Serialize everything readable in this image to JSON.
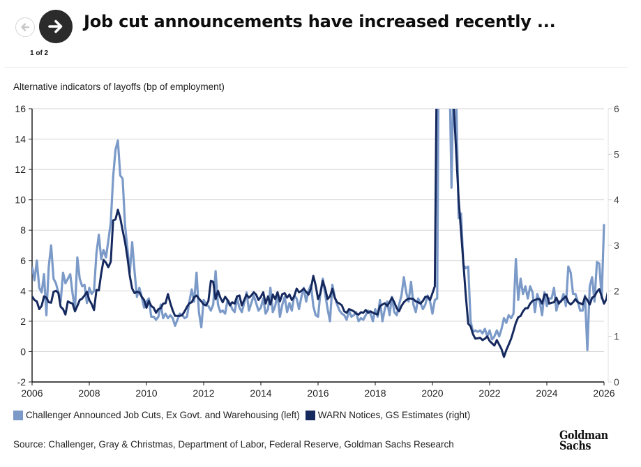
{
  "header": {
    "title": "Job cut announcements have increased recently ...",
    "page_indicator": "1 of 2",
    "prev_icon": "arrow-left-icon",
    "next_icon": "arrow-right-icon"
  },
  "legend": [
    {
      "label": "Challenger Announced Job Cuts, Ex Govt. and Warehousing (left)",
      "color": "#7b9ac8"
    },
    {
      "label": "WARN Notices, GS Estimates (right)",
      "color": "#15295e"
    }
  ],
  "source": "Source: Challenger, Gray & Christmas, Department of Labor, Federal Reserve, Goldman Sachs Research",
  "logo": {
    "line1": "Goldman",
    "line2": "Sachs"
  },
  "chart_data": {
    "type": "line",
    "title": "Alternative indicators of layoffs (bp of employment)",
    "xlabel": "",
    "ylabel_left": "",
    "ylabel_right": "",
    "x_start": "2006-01",
    "x_frequency": "monthly",
    "xlim": [
      2006,
      2026
    ],
    "x_ticks": [
      "2006",
      "2008",
      "2010",
      "2012",
      "2014",
      "2016",
      "2018",
      "2020",
      "2022",
      "2024",
      "2026"
    ],
    "ylim_left": [
      -2,
      16
    ],
    "y_ticks_left": [
      "-2",
      "0",
      "2",
      "4",
      "6",
      "8",
      "10",
      "12",
      "14",
      "16"
    ],
    "ylim_right": [
      0,
      6
    ],
    "y_ticks_right": [
      "0",
      "1",
      "2",
      "3",
      "4",
      "5",
      "6"
    ],
    "grid": true,
    "legend_position": "bottom-left",
    "series": [
      {
        "name": "Challenger Announced Job Cuts, Ex Govt. and Warehousing (left)",
        "axis": "left",
        "color": "#7b9ac8",
        "values": [
          5.6,
          4.7,
          6.0,
          4.2,
          3.9,
          5.1,
          2.4,
          5.6,
          7.0,
          4.8,
          4.5,
          3.9,
          3.3,
          5.2,
          4.5,
          4.8,
          5.1,
          3.8,
          2.8,
          6.2,
          4.8,
          4.3,
          4.4,
          3.2,
          4.2,
          3.8,
          4.0,
          6.5,
          7.7,
          6.1,
          6.7,
          6.2,
          7.3,
          8.5,
          11.5,
          13.3,
          13.9,
          11.6,
          11.4,
          8.3,
          6.8,
          5.2,
          7.2,
          5.3,
          3.6,
          4.2,
          3.6,
          2.9,
          3.3,
          3.5,
          2.3,
          2.3,
          2.1,
          2.3,
          3.1,
          2.2,
          2.5,
          2.2,
          2.4,
          2.2,
          1.7,
          2.1,
          2.5,
          2.4,
          2.2,
          2.3,
          3.3,
          4.1,
          3.3,
          5.2,
          2.6,
          1.6,
          3.4,
          3.1,
          3.0,
          2.7,
          3.1,
          5.3,
          3.1,
          2.6,
          2.7,
          2.5,
          3.4,
          3.2,
          2.8,
          2.6,
          3.5,
          2.9,
          2.6,
          3.2,
          3.9,
          2.7,
          3.2,
          3.7,
          3.2,
          2.7,
          2.9,
          3.5,
          2.5,
          2.8,
          4.2,
          2.6,
          3.0,
          3.8,
          2.3,
          3.1,
          3.6,
          2.6,
          3.2,
          2.7,
          3.7,
          3.5,
          2.8,
          3.6,
          4.2,
          3.3,
          4.0,
          4.4,
          3.0,
          2.4,
          2.3,
          3.9,
          4.8,
          3.8,
          2.8,
          2.0,
          4.4,
          3.6,
          3.1,
          2.7,
          2.5,
          2.4,
          2.1,
          2.7,
          2.3,
          2.4,
          2.6,
          2.0,
          2.2,
          2.1,
          2.4,
          2.7,
          2.5,
          2.0,
          2.8,
          2.3,
          3.4,
          2.0,
          2.8,
          3.3,
          2.4,
          3.6,
          2.6,
          2.4,
          3.1,
          3.7,
          4.9,
          3.9,
          3.3,
          4.6,
          3.1,
          2.6,
          3.5,
          3.2,
          2.8,
          3.1,
          3.7,
          3.3,
          2.5,
          3.4,
          3.5,
          30.0,
          40.0,
          30.0,
          25.0,
          20.0,
          10.8,
          20.0,
          16.5,
          8.8,
          9.1,
          5.7,
          5.5,
          5.6,
          2.0,
          1.3,
          1.4,
          1.3,
          1.4,
          1.2,
          1.5,
          1.0,
          1.4,
          0.8,
          1.0,
          1.4,
          1.0,
          1.5,
          2.2,
          1.9,
          2.4,
          2.2,
          2.5,
          6.1,
          3.4,
          4.8,
          3.8,
          4.3,
          3.5,
          4.3,
          3.9,
          2.6,
          3.8,
          3.3,
          2.4,
          3.9,
          3.0,
          3.5,
          3.5,
          4.2,
          2.7,
          3.3,
          3.3,
          3.8,
          3.0,
          5.6,
          5.2,
          3.8,
          3.8,
          3.3,
          2.7,
          2.7,
          3.7,
          0.1,
          4.3,
          4.9,
          3.3,
          5.9,
          5.8,
          3.5,
          8.4
        ]
      },
      {
        "name": "WARN Notices, GS Estimates (right)",
        "axis": "right",
        "color": "#15295e",
        "values": [
          1.88,
          1.8,
          1.77,
          1.6,
          1.67,
          1.88,
          1.85,
          1.75,
          1.74,
          1.98,
          2.0,
          1.96,
          1.65,
          1.6,
          1.48,
          1.77,
          1.74,
          1.72,
          1.55,
          1.67,
          1.8,
          1.83,
          1.9,
          1.98,
          1.8,
          1.71,
          1.58,
          2.02,
          2.01,
          2.38,
          2.68,
          2.62,
          2.52,
          2.64,
          3.55,
          3.57,
          3.78,
          3.6,
          3.33,
          3.07,
          2.73,
          2.33,
          2.05,
          1.95,
          1.98,
          1.97,
          1.87,
          1.8,
          1.63,
          1.78,
          1.67,
          1.63,
          1.52,
          1.6,
          1.62,
          1.72,
          1.73,
          1.93,
          1.73,
          1.57,
          1.45,
          1.45,
          1.45,
          1.47,
          1.55,
          1.65,
          1.73,
          1.75,
          1.86,
          1.9,
          1.83,
          1.77,
          1.7,
          1.68,
          1.78,
          2.22,
          2.2,
          1.82,
          2.0,
          1.85,
          1.75,
          1.87,
          1.8,
          1.68,
          1.75,
          1.72,
          1.88,
          1.9,
          1.68,
          1.8,
          1.92,
          1.85,
          1.9,
          1.97,
          1.92,
          1.8,
          1.87,
          1.97,
          1.72,
          1.88,
          1.7,
          1.92,
          1.82,
          1.97,
          1.77,
          1.93,
          1.95,
          1.85,
          1.92,
          1.8,
          1.88,
          2.05,
          1.97,
          2.0,
          2.05,
          1.98,
          1.92,
          2.05,
          2.33,
          2.12,
          1.82,
          1.95,
          2.22,
          2.05,
          1.82,
          1.88,
          2.05,
          1.85,
          1.75,
          1.72,
          1.68,
          1.55,
          1.52,
          1.6,
          1.58,
          1.55,
          1.5,
          1.48,
          1.53,
          1.52,
          1.58,
          1.52,
          1.55,
          1.52,
          1.5,
          1.48,
          1.67,
          1.7,
          1.73,
          1.67,
          1.75,
          1.85,
          1.75,
          1.62,
          1.55,
          1.67,
          1.75,
          1.8,
          1.83,
          1.83,
          1.82,
          1.77,
          1.75,
          1.72,
          1.78,
          1.87,
          1.87,
          1.8,
          1.95,
          2.1,
          8.0,
          9.0,
          9.0,
          9.0,
          9.0,
          8.0,
          7.0,
          6.0,
          5.0,
          4.0,
          3.3,
          2.6,
          1.9,
          1.28,
          1.22,
          1.05,
          0.95,
          0.96,
          0.97,
          0.92,
          0.95,
          1.0,
          0.9,
          0.85,
          0.8,
          0.92,
          0.82,
          0.72,
          0.55,
          0.7,
          0.82,
          0.95,
          1.12,
          1.3,
          1.42,
          1.45,
          1.55,
          1.62,
          1.62,
          1.72,
          1.78,
          1.8,
          1.82,
          1.82,
          1.72,
          1.92,
          1.92,
          1.72,
          1.74,
          1.75,
          1.85,
          1.72,
          1.78,
          1.83,
          1.88,
          1.75,
          1.7,
          1.75,
          1.82,
          1.75,
          1.73,
          1.7,
          1.87,
          1.8,
          1.7,
          1.85,
          1.88,
          1.98,
          2.04,
          1.88,
          1.72,
          1.82,
          2.08
        ]
      }
    ]
  }
}
